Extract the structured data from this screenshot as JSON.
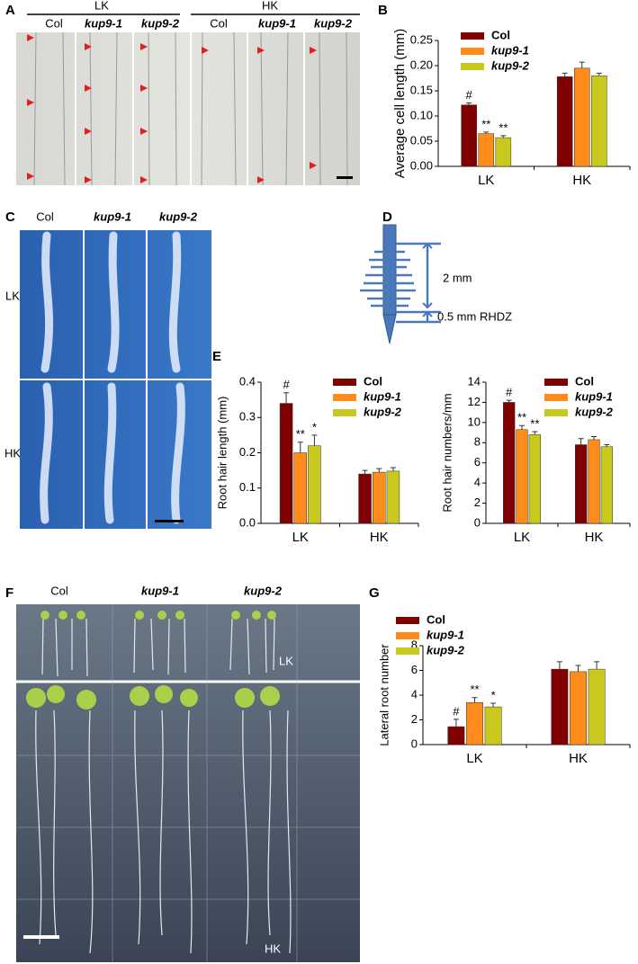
{
  "panel_labels": [
    "A",
    "B",
    "C",
    "D",
    "E",
    "F",
    "G"
  ],
  "panel_a": {
    "groups": [
      "LK",
      "HK"
    ],
    "columns": [
      "Col",
      "kup9-1",
      "kup9-2",
      "Col",
      "kup9-1",
      "kup9-2"
    ]
  },
  "panel_c": {
    "columns": [
      "Col",
      "kup9-1",
      "kup9-2"
    ],
    "rows": [
      "LK",
      "HK"
    ]
  },
  "panel_d": {
    "labels": [
      "2 mm",
      "0.5 mm RHDZ"
    ]
  },
  "panel_f": {
    "columns": [
      "Col",
      "kup9-1",
      "kup9-2"
    ],
    "rows": [
      "LK",
      "HK"
    ]
  },
  "chart_data": [
    {
      "type": "bar",
      "y_label": "Average cell length (mm)",
      "categories": [
        "LK",
        "HK"
      ],
      "legend": "upper-left",
      "ylim": [
        0,
        0.25
      ],
      "yticks": [
        {
          "value": 0,
          "label": "0.00"
        },
        0.05,
        {
          "value": 0.1,
          "label": "0.10"
        },
        0.15,
        {
          "value": 0.2,
          "label": "0.20"
        },
        0.25
      ],
      "series": [
        {
          "name": "Col",
          "color": "#800000",
          "values": [
            0.122,
            0.178
          ],
          "errors": [
            0.004,
            0.007
          ],
          "annotations": [
            "#",
            null
          ]
        },
        {
          "name": "kup9-1",
          "color": "#ff8c1a",
          "values": [
            0.065,
            0.195
          ],
          "errors": [
            0.003,
            0.012
          ],
          "annotations": [
            "**",
            null
          ]
        },
        {
          "name": "kup9-2",
          "color": "#c8c81e",
          "values": [
            0.057,
            0.18
          ],
          "errors": [
            0.004,
            0.005
          ],
          "annotations": [
            "**",
            null
          ]
        }
      ]
    },
    {
      "type": "bar",
      "y_label": "Root hair length (mm)",
      "categories": [
        "LK",
        "HK"
      ],
      "legend": "upper-right",
      "ylim": [
        0,
        0.4
      ],
      "yticks": [
        {
          "value": 0,
          "label": "0.0"
        },
        0.1,
        0.2,
        0.3,
        0.4
      ],
      "series": [
        {
          "name": "Col",
          "color": "#800000",
          "values": [
            0.34,
            0.14
          ],
          "errors": [
            0.03,
            0.01
          ],
          "annotations": [
            "#",
            null
          ]
        },
        {
          "name": "kup9-1",
          "color": "#ff8c1a",
          "values": [
            0.2,
            0.145
          ],
          "errors": [
            0.03,
            0.01
          ],
          "annotations": [
            "**",
            null
          ]
        },
        {
          "name": "kup9-2",
          "color": "#c8c81e",
          "values": [
            0.22,
            0.148
          ],
          "errors": [
            0.03,
            0.01
          ],
          "annotations": [
            "*",
            null
          ]
        }
      ]
    },
    {
      "type": "bar",
      "y_label": "Root hair numbers/mm",
      "categories": [
        "LK",
        "HK"
      ],
      "legend": "upper-right",
      "ylim": [
        0,
        14
      ],
      "yticks": [
        0,
        2,
        4,
        6,
        8,
        10,
        12,
        14
      ],
      "series": [
        {
          "name": "Col",
          "color": "#800000",
          "values": [
            12.0,
            7.8
          ],
          "errors": [
            0.2,
            0.6
          ],
          "annotations": [
            "#",
            null
          ]
        },
        {
          "name": "kup9-1",
          "color": "#ff8c1a",
          "values": [
            9.3,
            8.3
          ],
          "errors": [
            0.4,
            0.3
          ],
          "annotations": [
            "**",
            null
          ]
        },
        {
          "name": "kup9-2",
          "color": "#c8c81e",
          "values": [
            8.8,
            7.6
          ],
          "errors": [
            0.3,
            0.2
          ],
          "annotations": [
            "**",
            null
          ]
        }
      ]
    },
    {
      "type": "bar",
      "y_label": "Lateral root number",
      "categories": [
        "LK",
        "HK"
      ],
      "legend": "upper-left",
      "ylim": [
        0,
        8
      ],
      "yticks": [
        0,
        2,
        4,
        6,
        8
      ],
      "series": [
        {
          "name": "Col",
          "color": "#800000",
          "values": [
            1.45,
            6.1
          ],
          "errors": [
            0.6,
            0.6
          ],
          "annotations": [
            "#",
            null
          ]
        },
        {
          "name": "kup9-1",
          "color": "#ff8c1a",
          "values": [
            3.4,
            5.9
          ],
          "errors": [
            0.4,
            0.5
          ],
          "annotations": [
            "**",
            null
          ]
        },
        {
          "name": "kup9-2",
          "color": "#c8c81e",
          "values": [
            3.05,
            6.1
          ],
          "errors": [
            0.3,
            0.6
          ],
          "annotations": [
            "*",
            null
          ]
        }
      ]
    }
  ]
}
